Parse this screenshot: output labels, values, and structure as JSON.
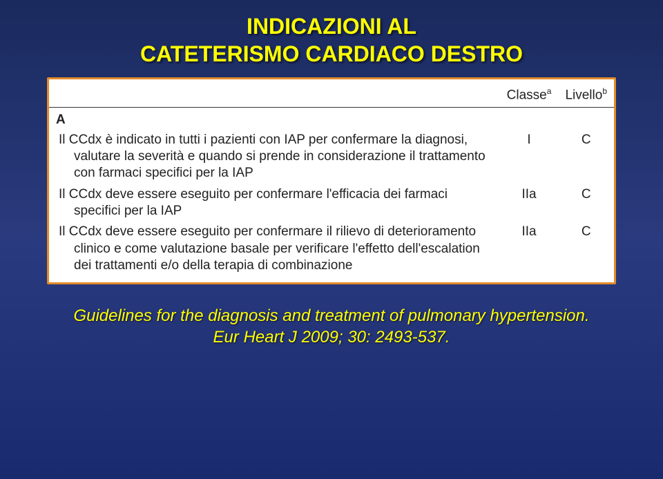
{
  "title": {
    "line1": "INDICAZIONI AL",
    "line2": "CATETERISMO CARDIACO DESTRO"
  },
  "table": {
    "headers": {
      "classe": "Classe",
      "classe_sup": "a",
      "livello": "Livello",
      "livello_sup": "b"
    },
    "section": "A",
    "rows": [
      {
        "desc": "Il CCdx è indicato in tutti i pazienti con IAP per confermare la diagnosi, valutare la severità e quando si prende in considerazione il trattamento con farmaci specifici per la IAP",
        "classe": "I",
        "livello": "C"
      },
      {
        "desc": "Il CCdx deve essere eseguito per confermare l'efficacia dei farmaci specifici per la IAP",
        "classe": "IIa",
        "livello": "C"
      },
      {
        "desc": "Il CCdx deve essere eseguito per confermare il rilievo di deterioramento clinico e come valutazione basale per verificare l'effetto dell'escalation dei trattamenti e/o della terapia di combinazione",
        "classe": "IIa",
        "livello": "C"
      }
    ]
  },
  "citation": {
    "line1": "Guidelines for the diagnosis and treatment of pulmonary hypertension.",
    "line2": "Eur Heart J 2009; 30: 2493-537."
  }
}
